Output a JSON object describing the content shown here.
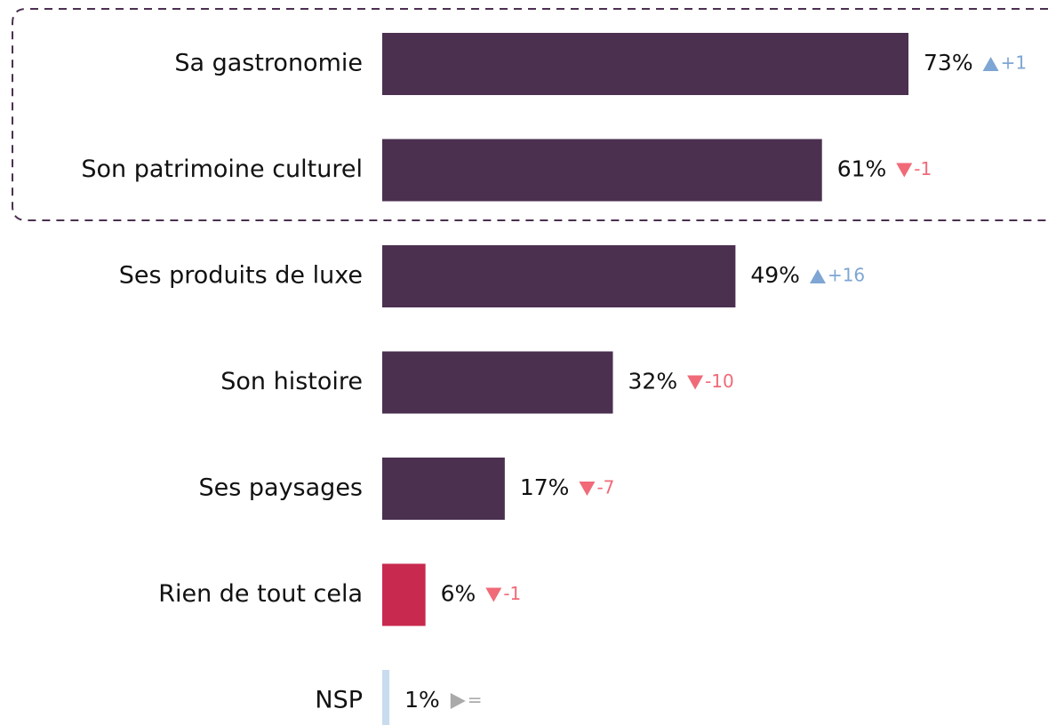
{
  "chart_data": {
    "type": "bar",
    "orientation": "horizontal",
    "categories": [
      "Sa gastronomie",
      "Son patrimoine culturel",
      "Ses produits de luxe",
      "Son histoire",
      "Ses paysages",
      "Rien de tout cela",
      "NSP"
    ],
    "values": [
      73,
      61,
      49,
      32,
      17,
      6,
      1
    ],
    "value_labels": [
      "73%",
      "61%",
      "49%",
      "32%",
      "17%",
      "6%",
      "1%"
    ],
    "changes": [
      "+1",
      "-1",
      "+16",
      "-10",
      "-7",
      "-1",
      "="
    ],
    "colors": [
      "#4b3050",
      "#4b3050",
      "#4b3050",
      "#4b3050",
      "#4b3050",
      "#c8294f",
      "#c9dbee"
    ],
    "xlim": [
      0,
      100
    ]
  }
}
